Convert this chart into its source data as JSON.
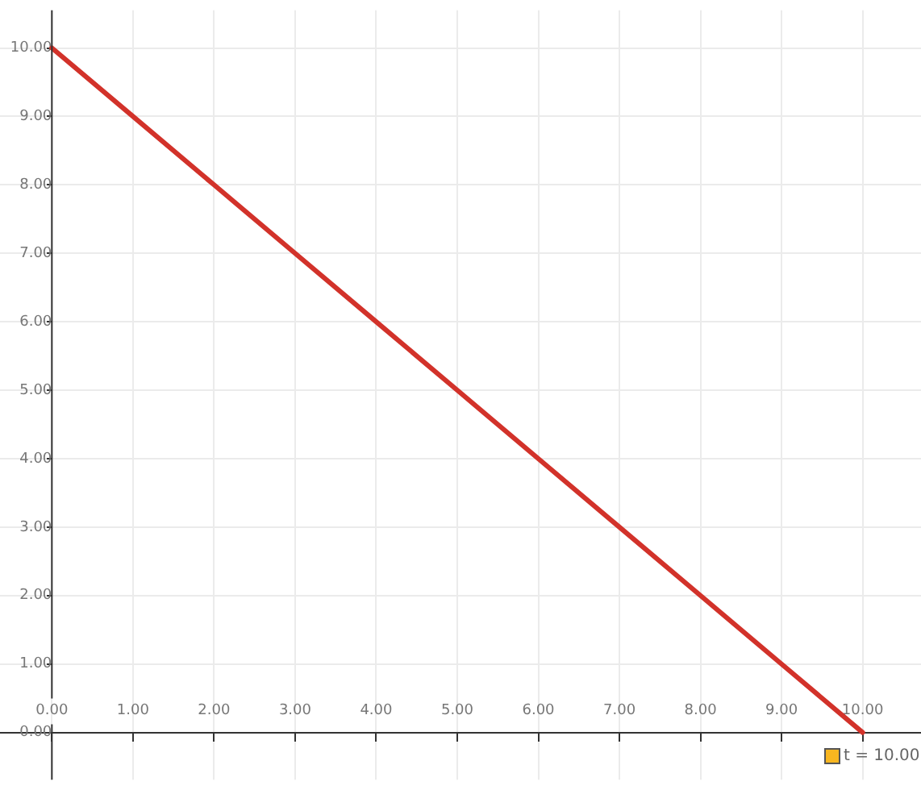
{
  "chart_data": {
    "type": "line",
    "x": [
      0,
      1,
      2,
      3,
      4,
      5,
      6,
      7,
      8,
      9,
      10
    ],
    "series": [
      {
        "color": "#d2322a",
        "values": [
          10,
          9,
          8,
          7,
          6,
          5,
          4,
          3,
          2,
          1,
          0
        ]
      }
    ],
    "xlim": [
      -0.64,
      10.72
    ],
    "ylim": [
      -0.69,
      10.55
    ],
    "xticks": [
      {
        "value": 0,
        "label": "0.00"
      },
      {
        "value": 1,
        "label": "1.00"
      },
      {
        "value": 2,
        "label": "2.00"
      },
      {
        "value": 3,
        "label": "3.00"
      },
      {
        "value": 4,
        "label": "4.00"
      },
      {
        "value": 5,
        "label": "5.00"
      },
      {
        "value": 6,
        "label": "6.00"
      },
      {
        "value": 7,
        "label": "7.00"
      },
      {
        "value": 8,
        "label": "8.00"
      },
      {
        "value": 9,
        "label": "9.00"
      },
      {
        "value": 10,
        "label": "10.00"
      }
    ],
    "yticks": [
      {
        "value": 0,
        "label": "0.00"
      },
      {
        "value": 1,
        "label": "1.00"
      },
      {
        "value": 2,
        "label": "2.00"
      },
      {
        "value": 3,
        "label": "3.00"
      },
      {
        "value": 4,
        "label": "4.00"
      },
      {
        "value": 5,
        "label": "5.00"
      },
      {
        "value": 6,
        "label": "6.00"
      },
      {
        "value": 7,
        "label": "7.00"
      },
      {
        "value": 8,
        "label": "8.00"
      },
      {
        "value": 9,
        "label": "9.00"
      },
      {
        "value": 10,
        "label": "10.00"
      }
    ],
    "grid": true,
    "marker": "none",
    "line_style": "solid",
    "annotations": [
      "t = 10.00"
    ]
  }
}
